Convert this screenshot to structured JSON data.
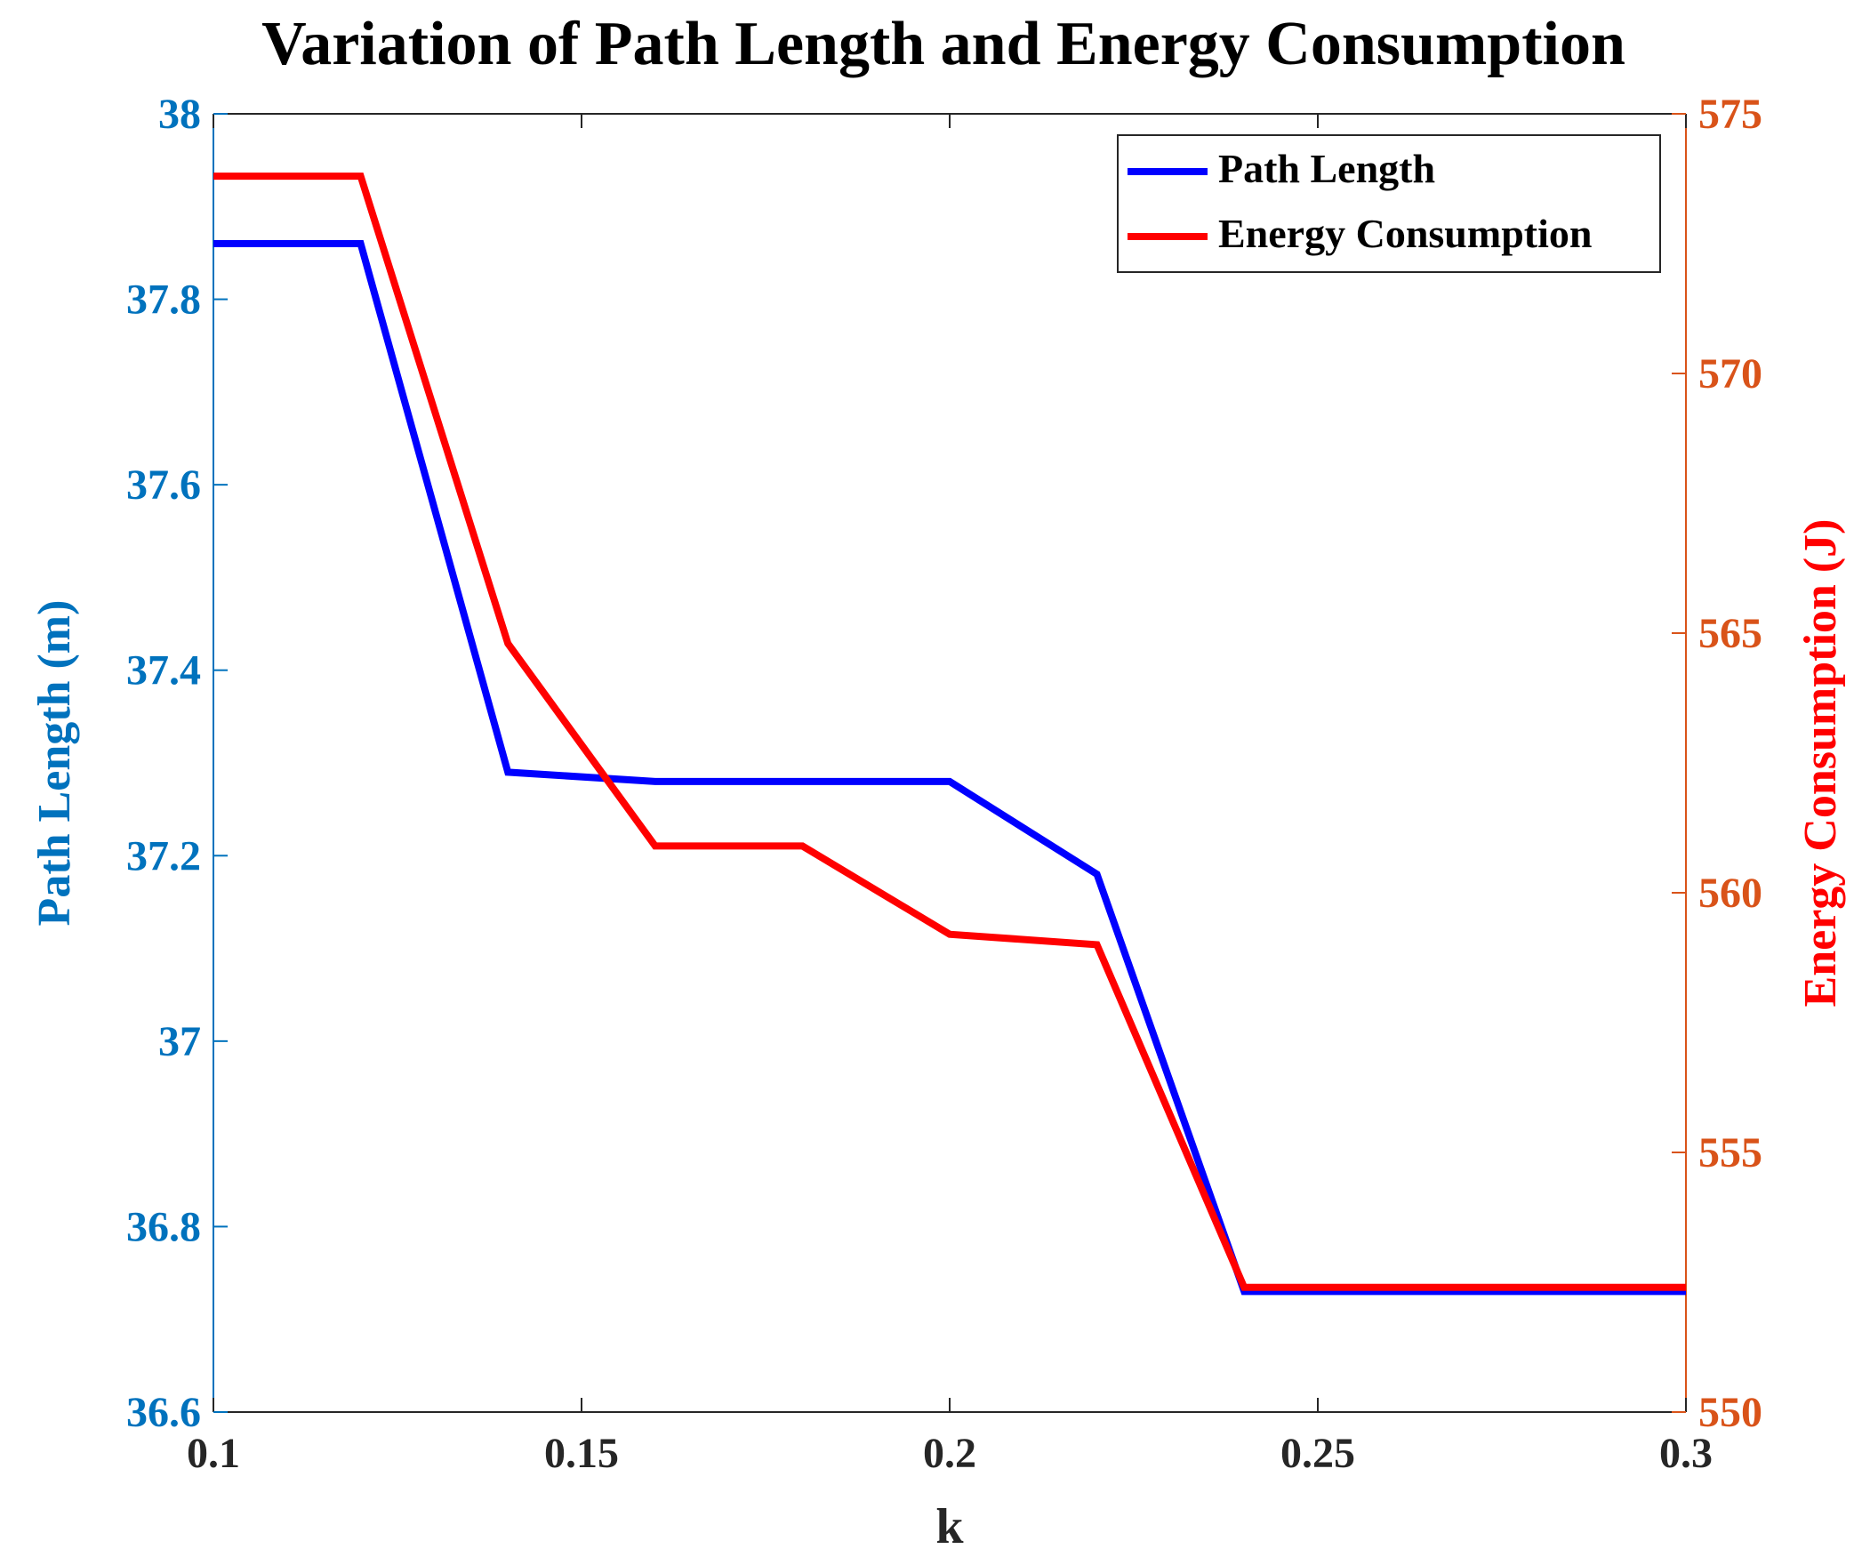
{
  "chart_data": {
    "type": "line",
    "title": "Variation of Path Length and Energy Consumption",
    "xlabel": "k",
    "ylabel_left": "Path Length  (m)",
    "ylabel_right": "Energy Consumption  (J)",
    "xlim": [
      0.1,
      0.3
    ],
    "ylim_left": [
      36.6,
      38.0
    ],
    "ylim_right": [
      550,
      575
    ],
    "x_ticks": [
      0.1,
      0.15,
      0.2,
      0.25,
      0.3
    ],
    "x_tick_labels": [
      "0.1",
      "0.15",
      "0.2",
      "0.25",
      "0.3"
    ],
    "y_left_ticks": [
      36.6,
      36.8,
      37.0,
      37.2,
      37.4,
      37.6,
      37.8,
      38.0
    ],
    "y_left_tick_labels": [
      "36.6",
      "36.8",
      "37",
      "37.2",
      "37.4",
      "37.6",
      "37.8",
      "38"
    ],
    "y_right_ticks": [
      550,
      555,
      560,
      565,
      570,
      575
    ],
    "y_right_tick_labels": [
      "550",
      "555",
      "560",
      "565",
      "570",
      "575"
    ],
    "grid": false,
    "legend_position": "top-right",
    "colors": {
      "left_axis": "#0072BD",
      "right_axis": "#D95319",
      "path_length": "#0000FF",
      "energy": "#FF0000"
    },
    "series": [
      {
        "name": "Path Length",
        "axis": "left",
        "x": [
          0.1,
          0.12,
          0.14,
          0.16,
          0.18,
          0.2,
          0.22,
          0.24,
          0.26,
          0.28,
          0.3
        ],
        "values": [
          37.86,
          37.86,
          37.29,
          37.28,
          37.28,
          37.28,
          37.18,
          36.73,
          36.73,
          36.73,
          36.73
        ]
      },
      {
        "name": "Energy Consumption",
        "axis": "right",
        "x": [
          0.1,
          0.12,
          0.14,
          0.16,
          0.18,
          0.2,
          0.22,
          0.24,
          0.26,
          0.28,
          0.3
        ],
        "values": [
          573.8,
          573.8,
          564.8,
          560.9,
          560.9,
          559.2,
          559.0,
          552.4,
          552.4,
          552.4,
          552.4
        ]
      }
    ]
  }
}
